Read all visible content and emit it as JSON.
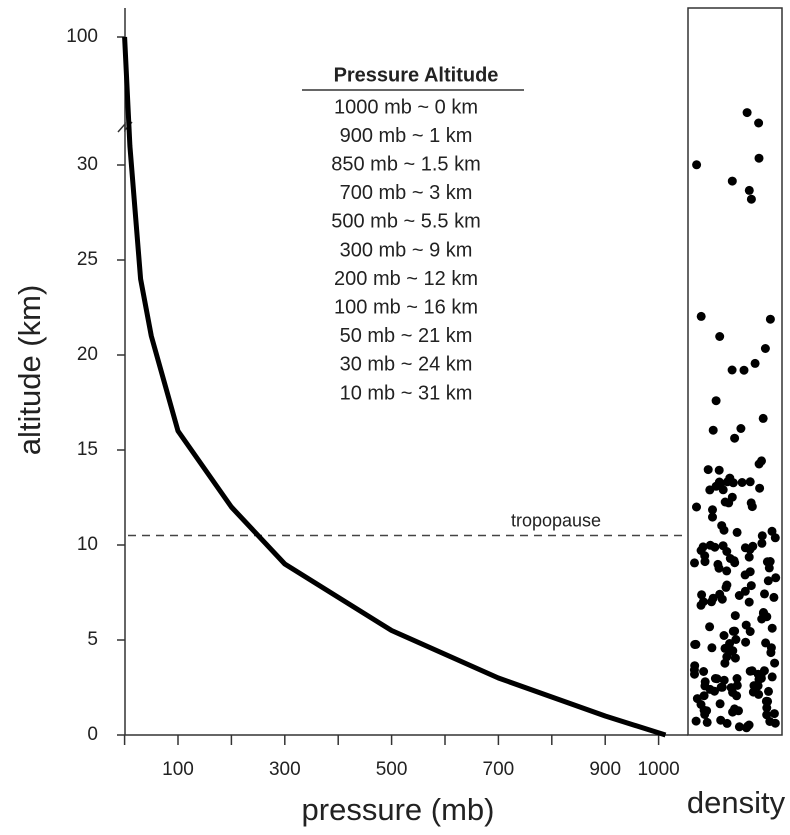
{
  "chart_data": {
    "type": "line",
    "x_label": "pressure (mb)",
    "y_label": "altitude (km)",
    "side_label": "density",
    "x": [
      1013,
      900,
      850,
      700,
      500,
      300,
      200,
      100,
      50,
      30,
      10,
      0
    ],
    "series": [
      {
        "color": "#000000",
        "values": [
          0,
          1,
          1.5,
          3,
          5.5,
          9,
          12,
          16,
          21,
          24,
          31,
          100
        ]
      }
    ],
    "xlim": [
      0,
      1000
    ],
    "xticks": [
      100,
      300,
      500,
      700,
      900,
      1000
    ],
    "xminor_ticks": [
      0,
      200,
      400,
      600,
      800
    ],
    "ylim": [
      0,
      100
    ],
    "y_break": 32,
    "yticks": [
      0,
      5,
      10,
      15,
      20,
      25,
      30,
      100
    ],
    "reference_line": {
      "value": 10.5,
      "label": "tropopause"
    },
    "table": {
      "header": "Pressure  Altitude",
      "rows": [
        "1000 mb ~ 0 km",
        "900 mb ~ 1 km",
        "850 mb ~ 1.5 km",
        "700 mb ~ 3 km",
        "500 mb ~ 5.5 km",
        "300 mb ~ 9 km",
        "200 mb ~ 12 km",
        "100 mb ~ 16 km",
        "50 mb ~ 21 km",
        "30 mb ~ 24 km",
        "10 mb ~ 31 km"
      ]
    }
  }
}
